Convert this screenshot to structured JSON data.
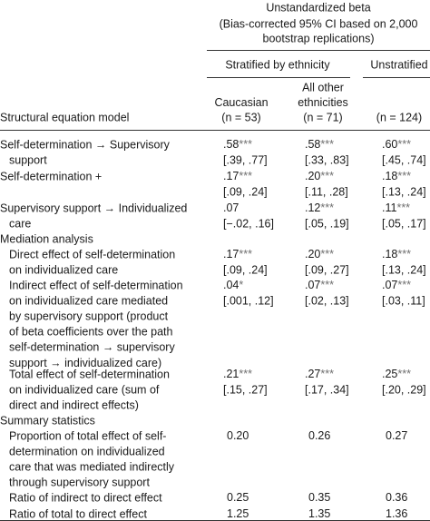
{
  "header": {
    "title": "Unstandardized beta",
    "subtitle_lines": [
      "(Bias-corrected 95% CI based on 2,000",
      "bootstrap replications)"
    ],
    "group_stratified": "Stratified by ethnicity",
    "group_unstratified": "Unstratified",
    "row_header": "Structural equation model",
    "columns": [
      {
        "lines": [
          "Caucasian"
        ],
        "n": "(n = 53)"
      },
      {
        "lines": [
          "All other",
          "ethnicities"
        ],
        "n": "(n = 71)"
      },
      {
        "lines": [],
        "n": "(n = 124)"
      }
    ]
  },
  "sections": [
    {
      "heading": null,
      "rows": [
        {
          "label": [
            "Self-determination → Supervisory",
            "support"
          ],
          "cells": [
            {
              "est": ".58",
              "sig": "***",
              "ci": "[.39, .77]"
            },
            {
              "est": ".58",
              "sig": "***",
              "ci": "[.33, .83]"
            },
            {
              "est": ".60",
              "sig": "***",
              "ci": "[.45, .74]"
            }
          ]
        },
        {
          "label": [
            "Self-determination +"
          ],
          "cells": [
            {
              "est": ".17",
              "sig": "***",
              "ci": "[.09, .24]"
            },
            {
              "est": ".20",
              "sig": "***",
              "ci": "[.11, .28]"
            },
            {
              "est": ".18",
              "sig": "***",
              "ci": "[.13, .24]"
            }
          ]
        },
        {
          "label": [
            "Supervisory support → Individualized",
            "care"
          ],
          "cells": [
            {
              "est": ".07",
              "sig": "",
              "ci": "[−.02, .16]"
            },
            {
              "est": ".12",
              "sig": "***",
              "ci": "[.05, .19]"
            },
            {
              "est": ".11",
              "sig": "***",
              "ci": "[.05, .17]"
            }
          ]
        }
      ]
    },
    {
      "heading": "Mediation analysis",
      "rows": [
        {
          "label": [
            "Direct effect of self-determination",
            "on individualized care"
          ],
          "cells": [
            {
              "est": ".17",
              "sig": "***",
              "ci": "[.09, .24]"
            },
            {
              "est": ".20",
              "sig": "***",
              "ci": "[.09, .27]"
            },
            {
              "est": ".18",
              "sig": "***",
              "ci": "[.13, .24]"
            }
          ]
        },
        {
          "label": [
            "Indirect effect of self-determination",
            "on individualized care mediated",
            "by supervisory support (product",
            "of beta coefficients over the path",
            "self-determination → supervisory",
            "support → individualized care)"
          ],
          "cells": [
            {
              "est": ".04",
              "sig": "*",
              "ci": "[.001, .12]"
            },
            {
              "est": ".07",
              "sig": "***",
              "ci": "[.02, .13]"
            },
            {
              "est": ".07",
              "sig": "***",
              "ci": "[.03, .11]"
            }
          ]
        },
        {
          "label": [
            "Total effect of self-determination",
            "on individualized care (sum of",
            "direct and indirect effects)"
          ],
          "cells": [
            {
              "est": ".21",
              "sig": "***",
              "ci": "[.15, .27]"
            },
            {
              "est": ".27",
              "sig": "***",
              "ci": "[.17, .34]"
            },
            {
              "est": ".25",
              "sig": "***",
              "ci": "[.20, .29]"
            }
          ]
        }
      ]
    },
    {
      "heading": "Summary statistics",
      "rows": [
        {
          "label": [
            "Proportion of total effect of self-",
            "determination on individualized",
            "care that was mediated indirectly",
            "through supervisory support"
          ],
          "cells": [
            {
              "est": "0.20"
            },
            {
              "est": "0.26"
            },
            {
              "est": "0.27"
            }
          ]
        },
        {
          "label": [
            "Ratio of indirect to direct effect"
          ],
          "cells": [
            {
              "est": "0.25"
            },
            {
              "est": "0.35"
            },
            {
              "est": "0.36"
            }
          ]
        },
        {
          "label": [
            "Ratio of total to direct effect"
          ],
          "cells": [
            {
              "est": "1.25"
            },
            {
              "est": "1.35"
            },
            {
              "est": "1.36"
            }
          ]
        }
      ]
    }
  ]
}
